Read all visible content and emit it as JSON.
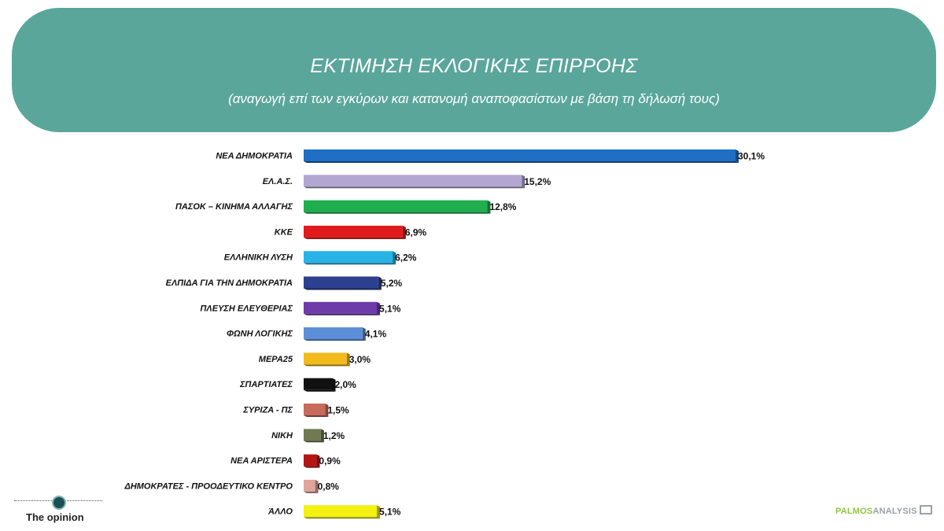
{
  "header": {
    "title": "ΕΚΤΙΜΗΣΗ ΕΚΛΟΓΙΚΗΣ ΕΠΙΡΡΟΗΣ",
    "subtitle": "(αναγωγή επί των εγκύρων και κατανομή αναποφασίστων με βάση τη δήλωσή τους)"
  },
  "chart_data": {
    "type": "bar",
    "orientation": "horizontal",
    "title": "ΕΚΤΙΜΗΣΗ ΕΚΛΟΓΙΚΗΣ ΕΠΙΡΡΟΗΣ",
    "subtitle": "(αναγωγή επί των εγκύρων και κατανομή αναποφασίστων με βάση τη δήλωσή τους)",
    "categories": [
      "ΝΕΑ ΔΗΜΟΚΡΑΤΙΑ",
      "ΕΛ.Α.Σ.",
      "ΠΑΣΟΚ – ΚΙΝΗΜΑ ΑΛΛΑΓΗΣ",
      "ΚΚΕ",
      "ΕΛΛΗΝΙΚΗ ΛΥΣΗ",
      "ΕΛΠΙΔΑ ΓΙΑ ΤΗΝ ΔΗΜΟΚΡΑΤΙΑ",
      "ΠΛΕΥΣΗ ΕΛΕΥΘΕΡΙΑΣ",
      "ΦΩΝΗ ΛΟΓΙΚΗΣ",
      "ΜΕΡΑ25",
      "ΣΠΑΡΤΙΑΤΕΣ",
      "ΣΥΡΙΖΑ - ΠΣ",
      "ΝΙΚΗ",
      "ΝΕΑ ΑΡΙΣΤΕΡΑ",
      "ΔΗΜΟΚΡΑΤΕΣ - ΠΡΟΟΔΕΥΤΙΚΟ ΚΕΝΤΡΟ",
      "ΆΛΛΟ"
    ],
    "values": [
      30.1,
      15.2,
      12.8,
      6.9,
      6.2,
      5.2,
      5.1,
      4.1,
      3.0,
      2.0,
      1.5,
      1.2,
      0.9,
      0.8,
      5.1
    ],
    "value_labels": [
      "30,1%",
      "15,2%",
      "12,8%",
      "6,9%",
      "6,2%",
      "5,2%",
      "5,1%",
      "4,1%",
      "3,0%",
      "2,0%",
      "1,5%",
      "1,2%",
      "0,9%",
      "0,8%",
      "5,1%"
    ],
    "colors": [
      "#1f6fc4",
      "#b3a7d1",
      "#1fae50",
      "#e11b1b",
      "#27b3e8",
      "#2d3f8f",
      "#6e3bab",
      "#5b8ed6",
      "#f2bb1b",
      "#111111",
      "#c86a5c",
      "#6f7a52",
      "#b51414",
      "#e0a49b",
      "#f4f012"
    ],
    "unit": "%",
    "grid": false,
    "legend": "none"
  },
  "logos": {
    "left_name": "The opinion",
    "right_green": "PALMOS",
    "right_gray": "ANALYSIS"
  }
}
